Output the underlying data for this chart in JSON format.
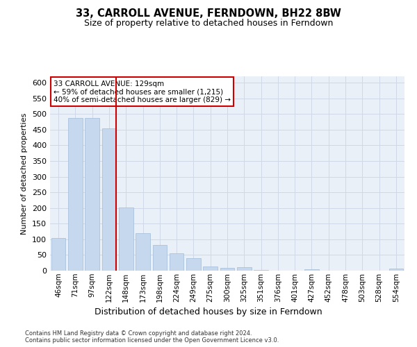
{
  "title": "33, CARROLL AVENUE, FERNDOWN, BH22 8BW",
  "subtitle": "Size of property relative to detached houses in Ferndown",
  "xlabel": "Distribution of detached houses by size in Ferndown",
  "ylabel": "Number of detached properties",
  "categories": [
    "46sqm",
    "71sqm",
    "97sqm",
    "122sqm",
    "148sqm",
    "173sqm",
    "198sqm",
    "224sqm",
    "249sqm",
    "275sqm",
    "300sqm",
    "325sqm",
    "351sqm",
    "376sqm",
    "401sqm",
    "427sqm",
    "452sqm",
    "478sqm",
    "503sqm",
    "528sqm",
    "554sqm"
  ],
  "values": [
    105,
    487,
    487,
    453,
    201,
    119,
    82,
    55,
    39,
    14,
    9,
    10,
    3,
    1,
    1,
    5,
    1,
    0,
    1,
    0,
    6
  ],
  "bar_color": "#c5d8ed",
  "bar_edge_color": "#a0bcd8",
  "vline_color": "#cc0000",
  "vline_x_index": 3,
  "annotation_text": "33 CARROLL AVENUE: 129sqm\n← 59% of detached houses are smaller (1,215)\n40% of semi-detached houses are larger (829) →",
  "annotation_box_color": "#ffffff",
  "annotation_box_edge": "#cc0000",
  "grid_color": "#d0d8e8",
  "background_color": "#eaf0f8",
  "footer": "Contains HM Land Registry data © Crown copyright and database right 2024.\nContains public sector information licensed under the Open Government Licence v3.0.",
  "ylim": [
    0,
    620
  ],
  "fig_width": 6.0,
  "fig_height": 5.0,
  "dpi": 100
}
